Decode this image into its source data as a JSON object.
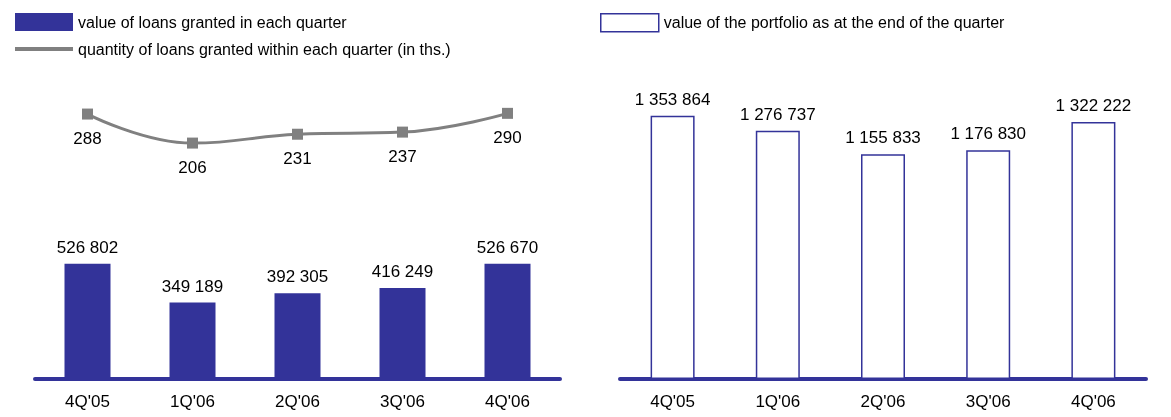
{
  "chart_data": [
    {
      "type": "bar",
      "categories": [
        "4Q'05",
        "1Q'06",
        "2Q'06",
        "3Q'06",
        "4Q'06"
      ],
      "series": [
        {
          "name": "value of loans granted in each quarter",
          "color": "#333399",
          "values": [
            526802,
            349189,
            392305,
            416249,
            526670
          ]
        }
      ],
      "data_labels": true,
      "legend": "top left"
    },
    {
      "type": "line",
      "categories": [
        null,
        null,
        null,
        null,
        null
      ],
      "series": [
        {
          "name": "quantity of loans granted within each quarter (in ths.)",
          "color": "#808080",
          "values": [
            288,
            206,
            231,
            237,
            290
          ]
        }
      ],
      "data_labels": true,
      "legend": "top left",
      "marker": "square",
      "line_style": "solid"
    },
    {
      "type": "bar",
      "categories": [
        "4Q'05",
        "1Q'06",
        "2Q'06",
        "3Q'06",
        "4Q'06"
      ],
      "series": [
        {
          "name": "value of the portfolio as at the end of the quarter",
          "color": "#ffffff",
          "values": [
            1353864,
            1276737,
            1155833,
            1176830,
            1322222
          ],
          "value_labels": [
            "1 353 864",
            "1 276 737",
            "1 155 833",
            "1 176 830",
            "1 322 222"
          ]
        }
      ],
      "legend": "top left"
    }
  ]
}
